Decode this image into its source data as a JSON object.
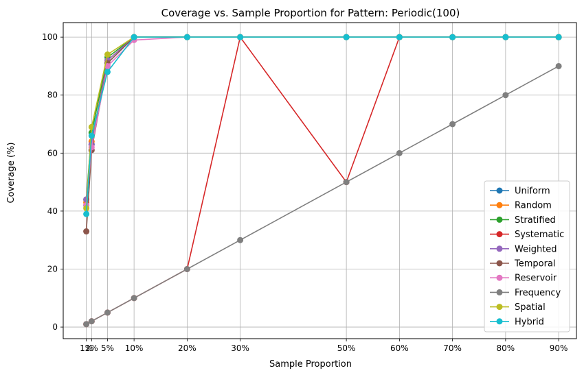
{
  "chart_data": {
    "type": "line",
    "title": "Coverage vs. Sample Proportion for Pattern: Periodic(100)",
    "xlabel": "Sample Proportion",
    "ylabel": "Coverage (%)",
    "x": [
      0.01,
      0.02,
      0.05,
      0.1,
      0.2,
      0.3,
      0.5,
      0.6,
      0.7,
      0.8,
      0.9
    ],
    "xtick_labels": [
      "1%",
      "2%",
      "5%",
      "10%",
      "20%",
      "30%",
      "50%",
      "60%",
      "70%",
      "80%",
      "90%"
    ],
    "ylim": [
      -4,
      105
    ],
    "yticks": [
      0,
      20,
      40,
      60,
      80,
      100
    ],
    "grid": true,
    "legend_position": "bottom-right",
    "series": [
      {
        "name": "Uniform",
        "color": "#1f77b4",
        "values": [
          42,
          63,
          91,
          100,
          100,
          100,
          100,
          100,
          100,
          100,
          100
        ]
      },
      {
        "name": "Random",
        "color": "#ff7f0e",
        "values": [
          43,
          64,
          92,
          100,
          100,
          100,
          100,
          100,
          100,
          100,
          100
        ]
      },
      {
        "name": "Stratified",
        "color": "#2ca02c",
        "values": [
          44,
          67,
          93,
          100,
          100,
          100,
          100,
          100,
          100,
          100,
          100
        ]
      },
      {
        "name": "Systematic",
        "color": "#d62728",
        "values": [
          1,
          2,
          5,
          10,
          20,
          100,
          50,
          100,
          100,
          100,
          100
        ]
      },
      {
        "name": "Weighted",
        "color": "#9467bd",
        "values": [
          44,
          63,
          92,
          100,
          100,
          100,
          100,
          100,
          100,
          100,
          100
        ]
      },
      {
        "name": "Temporal",
        "color": "#8c564b",
        "values": [
          33,
          61,
          91,
          100,
          100,
          100,
          100,
          100,
          100,
          100,
          100
        ]
      },
      {
        "name": "Reservoir",
        "color": "#e377c2",
        "values": [
          42,
          62,
          90,
          99,
          100,
          100,
          100,
          100,
          100,
          100,
          100
        ]
      },
      {
        "name": "Frequency",
        "color": "#7f7f7f",
        "values": [
          1,
          2,
          5,
          10,
          20,
          30,
          50,
          60,
          70,
          80,
          90
        ]
      },
      {
        "name": "Spatial",
        "color": "#bcbd22",
        "values": [
          41,
          69,
          94,
          100,
          100,
          100,
          100,
          100,
          100,
          100,
          100
        ]
      },
      {
        "name": "Hybrid",
        "color": "#17becf",
        "values": [
          39,
          66,
          88,
          100,
          100,
          100,
          100,
          100,
          100,
          100,
          100
        ]
      }
    ]
  }
}
